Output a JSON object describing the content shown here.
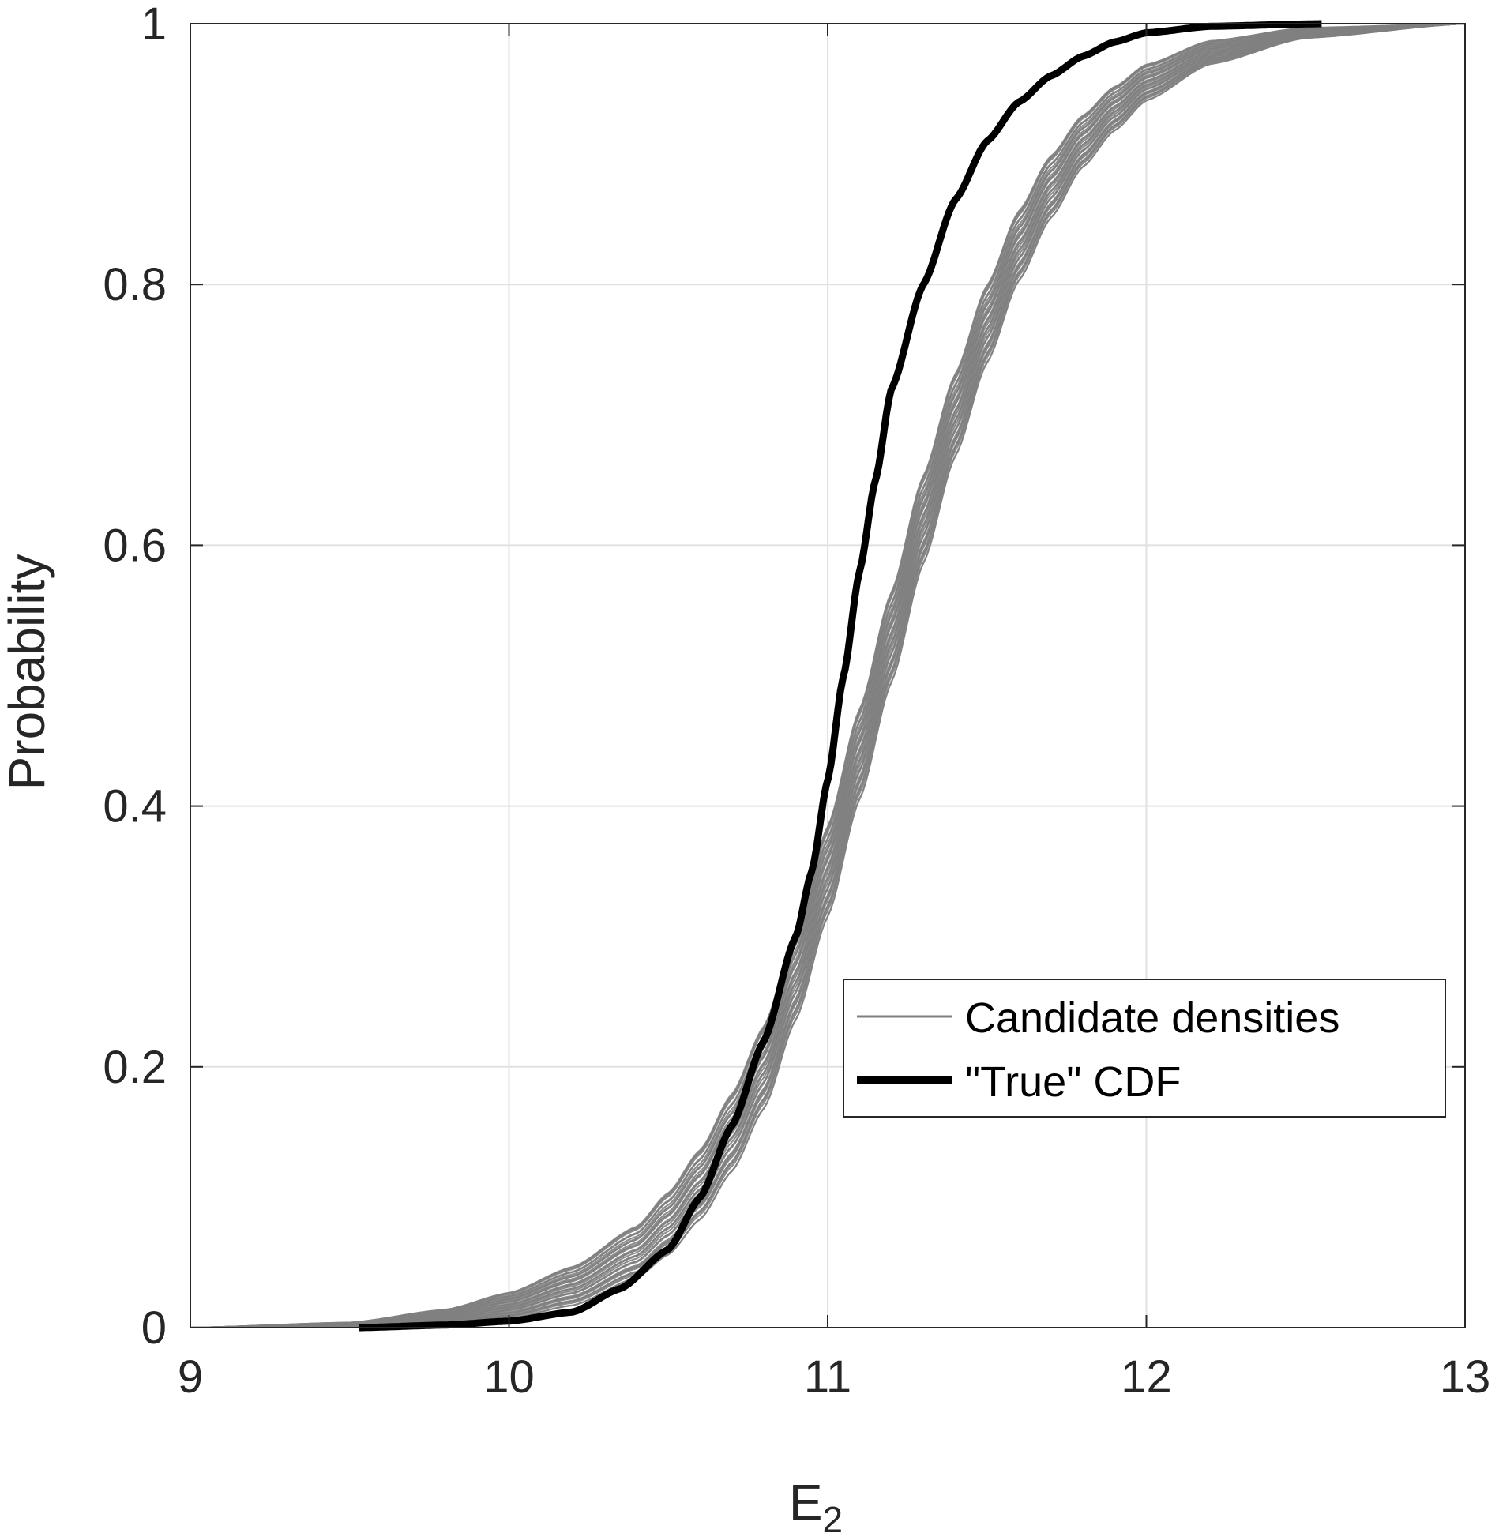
{
  "chart_data": {
    "type": "line",
    "xlabel": "E",
    "xlabel_subscript": "2",
    "ylabel": "Probability",
    "xlim": [
      9,
      13
    ],
    "ylim": [
      0,
      1
    ],
    "x_ticks": [
      9,
      10,
      11,
      12,
      13
    ],
    "x_tick_labels": [
      "9",
      "10",
      "11",
      "12",
      "13"
    ],
    "y_ticks": [
      0,
      0.2,
      0.4,
      0.6,
      0.8,
      1
    ],
    "y_tick_labels": [
      "0",
      "0.2",
      "0.4",
      "0.6",
      "0.8",
      "1"
    ],
    "grid": true,
    "legend_position": "bottom-right",
    "legend": [
      "Candidate densities",
      "\"True\" CDF"
    ],
    "colors": {
      "candidates": "#808080",
      "true_cdf": "#000000",
      "grid": "#e1e1e1",
      "axes": "#262626"
    },
    "series": [
      {
        "name": "\"True\" CDF",
        "x": [
          9.53,
          9.8,
          10.0,
          10.2,
          10.35,
          10.5,
          10.6,
          10.7,
          10.8,
          10.9,
          10.95,
          11.0,
          11.05,
          11.1,
          11.15,
          11.2,
          11.3,
          11.4,
          11.5,
          11.6,
          11.7,
          11.8,
          11.9,
          12.0,
          12.2,
          12.55
        ],
        "y": [
          0.0,
          0.002,
          0.005,
          0.012,
          0.03,
          0.06,
          0.1,
          0.155,
          0.22,
          0.3,
          0.35,
          0.42,
          0.5,
          0.58,
          0.65,
          0.72,
          0.8,
          0.865,
          0.91,
          0.94,
          0.96,
          0.975,
          0.986,
          0.993,
          0.998,
          1.0
        ]
      },
      {
        "name": "Candidate densities",
        "x": [
          9.0,
          9.5,
          9.8,
          10.0,
          10.2,
          10.4,
          10.5,
          10.6,
          10.7,
          10.8,
          10.9,
          11.0,
          11.1,
          11.2,
          11.3,
          11.4,
          11.5,
          11.6,
          11.7,
          11.8,
          11.9,
          12.0,
          12.2,
          12.5,
          13.0
        ],
        "y": [
          0.0,
          0.002,
          0.008,
          0.017,
          0.032,
          0.058,
          0.08,
          0.11,
          0.15,
          0.2,
          0.27,
          0.35,
          0.44,
          0.53,
          0.62,
          0.7,
          0.77,
          0.83,
          0.875,
          0.91,
          0.935,
          0.955,
          0.978,
          0.993,
          1.0
        ],
        "spread": [
          0.0,
          0.002,
          0.006,
          0.01,
          0.015,
          0.02,
          0.024,
          0.027,
          0.03,
          0.032,
          0.034,
          0.035,
          0.035,
          0.035,
          0.034,
          0.032,
          0.03,
          0.027,
          0.024,
          0.02,
          0.017,
          0.014,
          0.009,
          0.004,
          0.0
        ]
      }
    ]
  }
}
